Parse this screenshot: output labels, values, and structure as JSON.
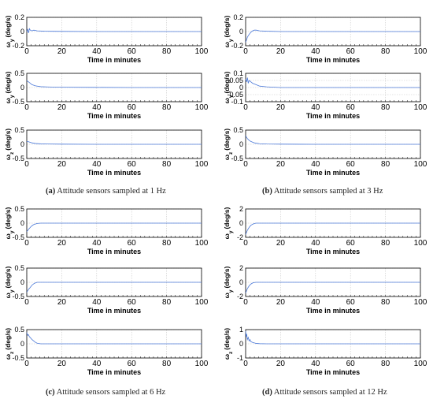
{
  "panels": [
    {
      "tag": "(a)",
      "caption": "Attitude sensors sampled at 1 Hz"
    },
    {
      "tag": "(b)",
      "caption": "Attitude sensors sampled at 3 Hz"
    },
    {
      "tag": "(c)",
      "caption": "Attitude sensors sampled at 6 Hz"
    },
    {
      "tag": "(d)",
      "caption": "Attitude sensors sampled at 12 Hz"
    }
  ],
  "colors": {
    "series": "#4a78d8",
    "axis": "#000000",
    "grid": "#c8c8c8"
  },
  "chart_data": [
    {
      "panel": "a",
      "type": "line",
      "xlabel": "Time in minutes",
      "ylabel": "ω_y (deg/s)",
      "xlim": [
        0,
        100
      ],
      "xticks": [
        0,
        20,
        40,
        60,
        80,
        100
      ],
      "ylim": [
        -0.2,
        0.2
      ],
      "yticks": [
        -0.2,
        0,
        0.2
      ],
      "ytick_labels": [
        "-0.2",
        "0",
        "0.2"
      ],
      "grid": true,
      "x": [
        0,
        0.5,
        1,
        1.5,
        2,
        3,
        4,
        6,
        10,
        20,
        40,
        60,
        80,
        100
      ],
      "y": [
        0.0,
        0.03,
        -0.02,
        0.04,
        0.02,
        0.01,
        0.02,
        0.01,
        0.005,
        0.002,
        0.0,
        0.0,
        0.0,
        0.0
      ]
    },
    {
      "panel": "a",
      "type": "line",
      "xlabel": "Time in minutes",
      "ylabel": "ω_y (deg/s)",
      "xlim": [
        0,
        100
      ],
      "xticks": [
        0,
        20,
        40,
        60,
        80,
        100
      ],
      "ylim": [
        -0.5,
        0.5
      ],
      "yticks": [
        -0.5,
        0,
        0.5
      ],
      "ytick_labels": [
        "-0.5",
        "0",
        "0.5"
      ],
      "grid": true,
      "x": [
        0,
        0.5,
        1,
        2,
        3,
        5,
        8,
        12,
        20,
        40,
        60,
        80,
        100
      ],
      "y": [
        0.25,
        0.22,
        0.2,
        0.15,
        0.1,
        0.06,
        0.03,
        0.02,
        0.01,
        0.005,
        0.0,
        0.0,
        0.0
      ]
    },
    {
      "panel": "a",
      "type": "line",
      "xlabel": "Time in minutes",
      "ylabel": "ω_z (deg/s)",
      "xlim": [
        0,
        100
      ],
      "xticks": [
        0,
        20,
        40,
        60,
        80,
        100
      ],
      "ylim": [
        -0.5,
        0.5
      ],
      "yticks": [
        -0.5,
        0,
        0.5
      ],
      "ytick_labels": [
        "-0.5",
        "0",
        "0.5"
      ],
      "grid": true,
      "x": [
        0,
        1,
        2,
        3,
        5,
        8,
        12,
        20,
        40,
        60,
        80,
        100
      ],
      "y": [
        0.1,
        0.09,
        0.07,
        0.05,
        0.03,
        0.015,
        0.01,
        0.005,
        0.0,
        0.0,
        0.0,
        0.0
      ]
    },
    {
      "panel": "b",
      "type": "line",
      "xlabel": "Time in minutes",
      "ylabel": "ω_y (deg/s)",
      "xlim": [
        0,
        100
      ],
      "xticks": [
        0,
        20,
        40,
        60,
        80,
        100
      ],
      "ylim": [
        -0.2,
        0.2
      ],
      "yticks": [
        -0.2,
        0,
        0.2
      ],
      "ytick_labels": [
        "-0.2",
        "0",
        "0.2"
      ],
      "grid": true,
      "x": [
        0,
        0.5,
        1,
        2,
        3,
        4,
        5,
        6,
        8,
        12,
        20,
        40,
        60,
        80,
        100
      ],
      "y": [
        -0.15,
        -0.12,
        -0.08,
        -0.04,
        -0.01,
        0.01,
        0.02,
        0.02,
        0.01,
        0.005,
        0.0,
        0.0,
        0.0,
        0.0,
        0.0
      ]
    },
    {
      "panel": "b",
      "type": "line",
      "xlabel": "Time in minutes",
      "ylabel": "ω_y (deg/s)",
      "xlim": [
        0,
        100
      ],
      "xticks": [
        0,
        20,
        40,
        60,
        80,
        100
      ],
      "ylim": [
        -0.1,
        0.1
      ],
      "yticks": [
        -0.1,
        -0.05,
        0,
        0.05,
        0.1
      ],
      "ytick_labels": [
        "-0.1",
        "-0.05",
        "0",
        "0.05",
        "0.1"
      ],
      "grid": true,
      "x": [
        0,
        0.5,
        1,
        1.5,
        2,
        3,
        4,
        6,
        8,
        12,
        20,
        40,
        60,
        80,
        100
      ],
      "y": [
        0.06,
        0.04,
        0.07,
        0.03,
        0.05,
        0.04,
        0.03,
        0.02,
        0.01,
        0.005,
        0.0,
        0.0,
        0.0,
        0.0,
        0.0
      ]
    },
    {
      "panel": "b",
      "type": "line",
      "xlabel": "Time in minutes",
      "ylabel": "ω_z (deg/s)",
      "xlim": [
        0,
        100
      ],
      "xticks": [
        0,
        20,
        40,
        60,
        80,
        100
      ],
      "ylim": [
        -0.5,
        0.5
      ],
      "yticks": [
        -0.5,
        0,
        0.5
      ],
      "ytick_labels": [
        "-0.5",
        "0",
        "0.5"
      ],
      "grid": true,
      "x": [
        0,
        0.5,
        1,
        2,
        3,
        5,
        8,
        12,
        20,
        40,
        60,
        80,
        100
      ],
      "y": [
        0.3,
        0.25,
        0.2,
        0.14,
        0.1,
        0.05,
        0.02,
        0.01,
        0.005,
        0.0,
        0.0,
        0.0,
        0.0
      ]
    },
    {
      "panel": "c",
      "type": "line",
      "xlabel": "Time in minutes",
      "ylabel": "ω_y (deg/s)",
      "xlim": [
        0,
        100
      ],
      "xticks": [
        0,
        20,
        40,
        60,
        80,
        100
      ],
      "ylim": [
        -0.5,
        0.5
      ],
      "yticks": [
        -0.5,
        0,
        0.5
      ],
      "ytick_labels": [
        "-0.5",
        "0",
        "0.5"
      ],
      "grid": true,
      "x": [
        0,
        0.5,
        1,
        2,
        3,
        4,
        6,
        8,
        12,
        20,
        40,
        60,
        80,
        100
      ],
      "y": [
        -0.3,
        -0.26,
        -0.22,
        -0.15,
        -0.09,
        -0.05,
        -0.01,
        0.0,
        0.0,
        0.0,
        0.0,
        0.0,
        0.0,
        0.0
      ]
    },
    {
      "panel": "c",
      "type": "line",
      "xlabel": "Time in minutes",
      "ylabel": "ω_y (deg/s)",
      "xlim": [
        0,
        100
      ],
      "xticks": [
        0,
        20,
        40,
        60,
        80,
        100
      ],
      "ylim": [
        -0.5,
        0.5
      ],
      "yticks": [
        -0.5,
        0,
        0.5
      ],
      "ytick_labels": [
        "-0.5",
        "0",
        "0.5"
      ],
      "grid": true,
      "x": [
        0,
        0.5,
        1,
        2,
        3,
        4,
        5,
        6,
        8,
        12,
        20,
        40,
        60,
        80,
        100
      ],
      "y": [
        -0.35,
        -0.3,
        -0.25,
        -0.18,
        -0.1,
        -0.05,
        -0.02,
        0.0,
        0.0,
        0.0,
        0.0,
        0.0,
        0.0,
        0.0,
        0.0
      ]
    },
    {
      "panel": "c",
      "type": "line",
      "xlabel": "Time in minutes",
      "ylabel": "ω_z (deg/s)",
      "xlim": [
        0,
        100
      ],
      "xticks": [
        0,
        20,
        40,
        60,
        80,
        100
      ],
      "ylim": [
        -0.5,
        0.5
      ],
      "yticks": [
        -0.5,
        0,
        0.5
      ],
      "ytick_labels": [
        "-0.5",
        "0",
        "0.5"
      ],
      "grid": true,
      "x": [
        0,
        0.5,
        1,
        1.5,
        2,
        3,
        4,
        5,
        6,
        8,
        12,
        20,
        40,
        60,
        80,
        100
      ],
      "y": [
        0.4,
        0.3,
        0.32,
        0.25,
        0.22,
        0.15,
        0.1,
        0.05,
        0.02,
        0.0,
        0.0,
        0.0,
        0.0,
        0.0,
        0.0,
        0.0
      ]
    },
    {
      "panel": "d",
      "type": "line",
      "xlabel": "Time in minutes",
      "ylabel": "ω_y (deg/s)",
      "xlim": [
        0,
        100
      ],
      "xticks": [
        0,
        20,
        40,
        60,
        80,
        100
      ],
      "ylim": [
        -2,
        2
      ],
      "yticks": [
        -2,
        0,
        2
      ],
      "ytick_labels": [
        "-2",
        "0",
        "2"
      ],
      "grid": true,
      "x": [
        0,
        0.5,
        1,
        2,
        3,
        4,
        5,
        6,
        8,
        12,
        20,
        40,
        60,
        80,
        100
      ],
      "y": [
        -1.6,
        -1.3,
        -1.0,
        -0.6,
        -0.3,
        -0.15,
        -0.05,
        0.0,
        0.0,
        0.0,
        0.0,
        0.0,
        0.0,
        0.0,
        0.0
      ]
    },
    {
      "panel": "d",
      "type": "line",
      "xlabel": "Time in minutes",
      "ylabel": "ω_y (deg/s)",
      "xlim": [
        0,
        100
      ],
      "xticks": [
        0,
        20,
        40,
        60,
        80,
        100
      ],
      "ylim": [
        -2,
        2
      ],
      "yticks": [
        -2,
        0,
        2
      ],
      "ytick_labels": [
        "-2",
        "0",
        "2"
      ],
      "grid": true,
      "x": [
        0,
        0.5,
        1,
        2,
        3,
        4,
        5,
        6,
        8,
        12,
        20,
        40,
        60,
        80,
        100
      ],
      "y": [
        -1.5,
        -1.2,
        -0.9,
        -0.5,
        -0.25,
        -0.1,
        -0.03,
        0.0,
        0.0,
        0.0,
        0.0,
        0.0,
        0.0,
        0.0,
        0.0
      ]
    },
    {
      "panel": "d",
      "type": "line",
      "xlabel": "Time in minutes",
      "ylabel": "ω_z (deg/s)",
      "xlim": [
        0,
        100
      ],
      "xticks": [
        0,
        20,
        40,
        60,
        80,
        100
      ],
      "ylim": [
        -1,
        1
      ],
      "yticks": [
        -1,
        0,
        1
      ],
      "ytick_labels": [
        "-1",
        "0",
        "1"
      ],
      "grid": true,
      "x": [
        0,
        0.3,
        0.6,
        1,
        1.5,
        2,
        2.5,
        3,
        4,
        5,
        6,
        8,
        12,
        20,
        40,
        60,
        80,
        100
      ],
      "y": [
        0.9,
        0.5,
        0.7,
        0.3,
        0.45,
        0.2,
        0.3,
        0.15,
        0.1,
        0.06,
        0.03,
        0.01,
        0.0,
        0.0,
        0.0,
        0.0,
        0.0,
        0.0
      ]
    }
  ]
}
